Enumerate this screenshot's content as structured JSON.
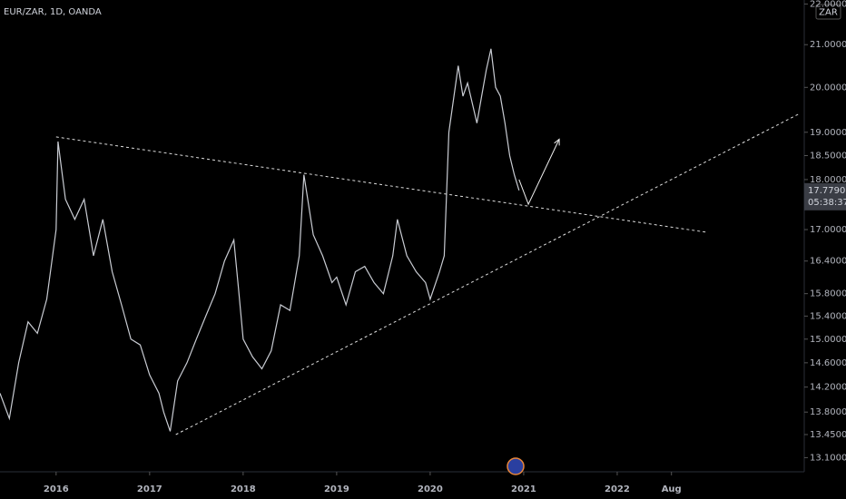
{
  "chart_data": {
    "type": "line",
    "title": "EUR/ZAR, 1D, OANDA",
    "currency_button": "ZAR",
    "log_scale": true,
    "color": "#c9ccd3",
    "xlim": [
      2015.4,
      2024.0
    ],
    "xticks": [
      2016,
      2017,
      2018,
      2019,
      2020,
      2021,
      2022,
      {
        "value": 2022.58,
        "label": "Aug"
      }
    ],
    "ylim": [
      12.89,
      22.1
    ],
    "yticks": [
      {
        "value": 22,
        "label": "22.00000"
      },
      {
        "value": 21,
        "label": "21.00000"
      },
      {
        "value": 20,
        "label": "20.00000"
      },
      {
        "value": 19,
        "label": "19.00000"
      },
      {
        "value": 18.5,
        "label": "18.50000"
      },
      {
        "value": 18,
        "label": "18.00000"
      },
      {
        "value": 17,
        "label": "17.00000"
      },
      {
        "value": 16.4,
        "label": "16.40000"
      },
      {
        "value": 15.8,
        "label": "15.80000"
      },
      {
        "value": 15.4,
        "label": "15.40000"
      },
      {
        "value": 15,
        "label": "15.00000"
      },
      {
        "value": 14.6,
        "label": "14.60000"
      },
      {
        "value": 14.2,
        "label": "14.20000"
      },
      {
        "value": 13.8,
        "label": "13.80000"
      },
      {
        "value": 13.45,
        "label": "13.45000"
      },
      {
        "value": 13.1,
        "label": "13.10000"
      }
    ],
    "current_price": {
      "value": 17.779,
      "label": "17.77900",
      "countdown": "05:38:37"
    },
    "x": [
      2015.4,
      2015.5,
      2015.6,
      2015.7,
      2015.8,
      2015.9,
      2016.0,
      2016.02,
      2016.1,
      2016.2,
      2016.3,
      2016.4,
      2016.5,
      2016.6,
      2016.7,
      2016.8,
      2016.9,
      2017.0,
      2017.1,
      2017.15,
      2017.22,
      2017.3,
      2017.4,
      2017.5,
      2017.6,
      2017.7,
      2017.8,
      2017.9,
      2017.95,
      2018.0,
      2018.1,
      2018.2,
      2018.3,
      2018.4,
      2018.5,
      2018.6,
      2018.65,
      2018.75,
      2018.85,
      2018.95,
      2019.0,
      2019.1,
      2019.2,
      2019.3,
      2019.4,
      2019.5,
      2019.6,
      2019.65,
      2019.75,
      2019.85,
      2019.95,
      2020.0,
      2020.1,
      2020.15,
      2020.2,
      2020.3,
      2020.35,
      2020.4,
      2020.5,
      2020.55,
      2020.6,
      2020.65,
      2020.7,
      2020.75,
      2020.8,
      2020.85,
      2020.9,
      2020.95
    ],
    "values": [
      14.1,
      13.7,
      14.6,
      15.3,
      15.1,
      15.7,
      17.0,
      18.8,
      17.6,
      17.2,
      17.6,
      16.5,
      17.2,
      16.2,
      15.6,
      15.0,
      14.9,
      14.4,
      14.1,
      13.8,
      13.5,
      14.3,
      14.6,
      15.0,
      15.4,
      15.8,
      16.4,
      16.8,
      15.9,
      15.0,
      14.7,
      14.5,
      14.8,
      15.6,
      15.5,
      16.5,
      18.1,
      16.9,
      16.5,
      16.0,
      16.1,
      15.6,
      16.2,
      16.3,
      16.0,
      15.8,
      16.5,
      17.2,
      16.5,
      16.2,
      16.0,
      15.7,
      16.2,
      16.5,
      19.0,
      20.5,
      19.8,
      20.1,
      19.2,
      19.8,
      20.4,
      20.9,
      20.0,
      19.8,
      19.2,
      18.5,
      18.1,
      17.78
    ],
    "trendlines": [
      {
        "x": [
          2016.0,
          2022.95
        ],
        "values": [
          18.9,
          16.95
        ]
      },
      {
        "x": [
          2017.28,
          2023.94
        ],
        "values": [
          13.45,
          19.4
        ]
      }
    ],
    "projection": {
      "x": [
        2020.95,
        2021.05,
        2021.38
      ],
      "values": [
        18.0,
        17.5,
        18.85
      ]
    }
  }
}
